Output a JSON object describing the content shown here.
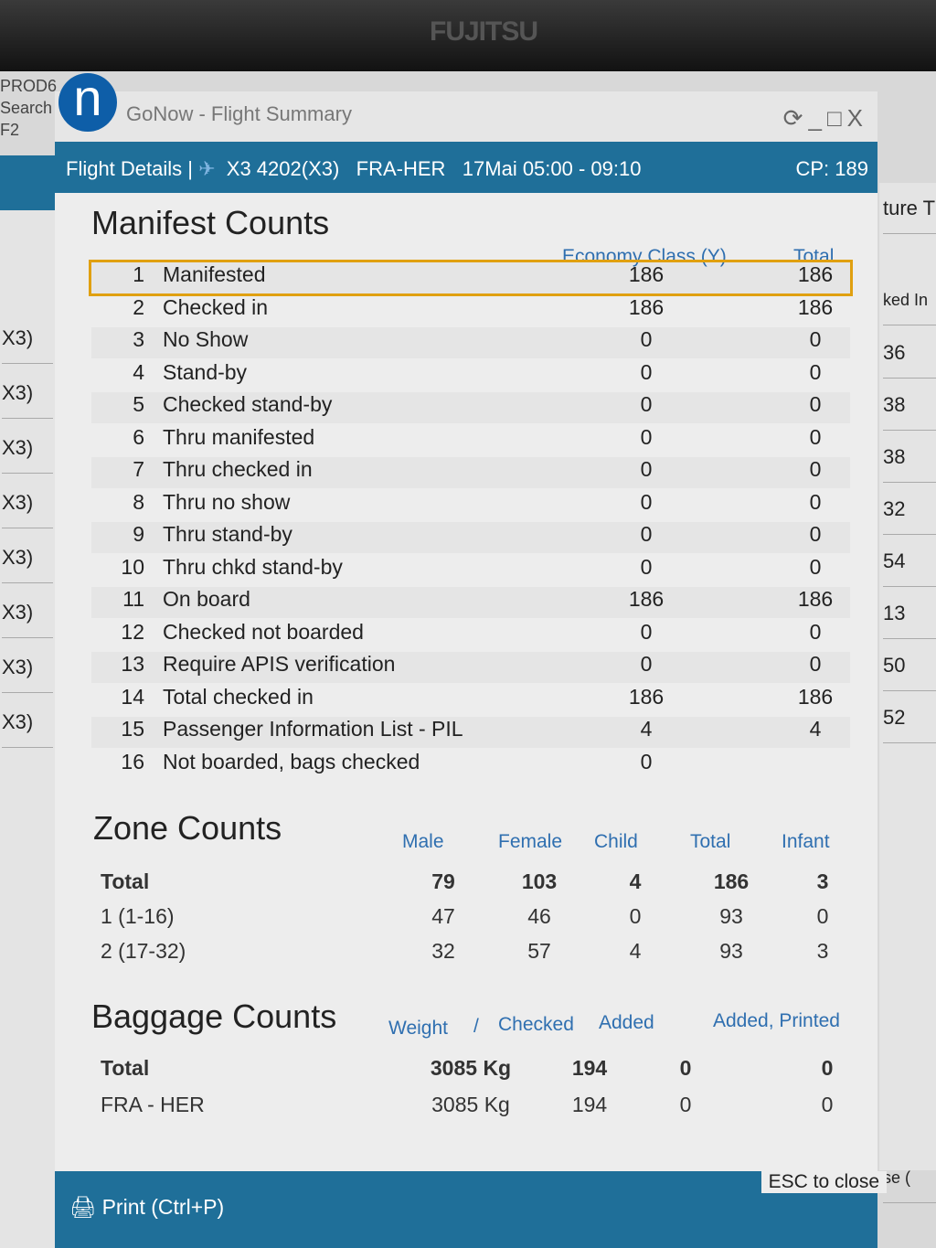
{
  "bezel": {
    "brand": "FUJITSU"
  },
  "background_app": {
    "env": "PROD6",
    "search": "Search",
    "key": "F2",
    "left_rows": [
      "X3)",
      "X3)",
      "X3)",
      "X3)",
      "X3)",
      "X3)",
      "X3)",
      "X3)"
    ],
    "right_header": "ture T",
    "right_col": "ked In",
    "right_rows": [
      "36",
      "38",
      "38",
      "32",
      "54",
      "13",
      "50",
      "52"
    ],
    "right_footer": "se ("
  },
  "window": {
    "title": "GoNow - Flight Summary",
    "controls": {
      "refresh": "⟳",
      "minimize": "_",
      "maximize": "□",
      "close": "X"
    }
  },
  "flight": {
    "label": "Flight Details |",
    "airline_icon": "airline-logo",
    "flight_no": "X3 4202(X3)",
    "route": "FRA-HER",
    "schedule": "17Mai 05:00 - 09:10",
    "cp": "CP: 189"
  },
  "manifest": {
    "title": "Manifest Counts",
    "columns": [
      "Economy Class (Y)",
      "Total"
    ],
    "rows": [
      {
        "n": "1",
        "label": "Manifested",
        "y": "186",
        "total": "186"
      },
      {
        "n": "2",
        "label": "Checked in",
        "y": "186",
        "total": "186"
      },
      {
        "n": "3",
        "label": "No Show",
        "y": "0",
        "total": "0"
      },
      {
        "n": "4",
        "label": "Stand-by",
        "y": "0",
        "total": "0"
      },
      {
        "n": "5",
        "label": "Checked stand-by",
        "y": "0",
        "total": "0"
      },
      {
        "n": "6",
        "label": "Thru manifested",
        "y": "0",
        "total": "0"
      },
      {
        "n": "7",
        "label": "Thru checked in",
        "y": "0",
        "total": "0"
      },
      {
        "n": "8",
        "label": "Thru no show",
        "y": "0",
        "total": "0"
      },
      {
        "n": "9",
        "label": "Thru stand-by",
        "y": "0",
        "total": "0"
      },
      {
        "n": "10",
        "label": "Thru chkd stand-by",
        "y": "0",
        "total": "0"
      },
      {
        "n": "11",
        "label": "On board",
        "y": "186",
        "total": "186"
      },
      {
        "n": "12",
        "label": "Checked not boarded",
        "y": "0",
        "total": "0"
      },
      {
        "n": "13",
        "label": "Require APIS verification",
        "y": "0",
        "total": "0"
      },
      {
        "n": "14",
        "label": "Total checked in",
        "y": "186",
        "total": "186"
      },
      {
        "n": "15",
        "label": "Passenger Information List - PIL",
        "y": "4",
        "total": "4"
      },
      {
        "n": "16",
        "label": "Not boarded, bags checked",
        "y": "0",
        "total": ""
      }
    ],
    "selected_row": 1
  },
  "zones": {
    "title": "Zone Counts",
    "columns": [
      "Male",
      "Female",
      "Child",
      "Total",
      "Infant"
    ],
    "rows": [
      {
        "label": "Total",
        "v": [
          "79",
          "103",
          "4",
          "186",
          "3"
        ]
      },
      {
        "label": "1 (1-16)",
        "v": [
          "47",
          "46",
          "0",
          "93",
          "0"
        ]
      },
      {
        "label": "2 (17-32)",
        "v": [
          "32",
          "57",
          "4",
          "93",
          "3"
        ]
      }
    ]
  },
  "baggage": {
    "title": "Baggage Counts",
    "columns": [
      "Weight",
      "/",
      "Checked",
      "Added",
      "Added, Printed"
    ],
    "rows": [
      {
        "label": "Total",
        "v": [
          "3085 Kg",
          "194",
          "0",
          "0"
        ]
      },
      {
        "label": "FRA - HER",
        "v": [
          "3085 Kg",
          "194",
          "0",
          "0"
        ]
      }
    ]
  },
  "footer": {
    "print": "Print (Ctrl+P)",
    "esc": "ESC to close"
  }
}
